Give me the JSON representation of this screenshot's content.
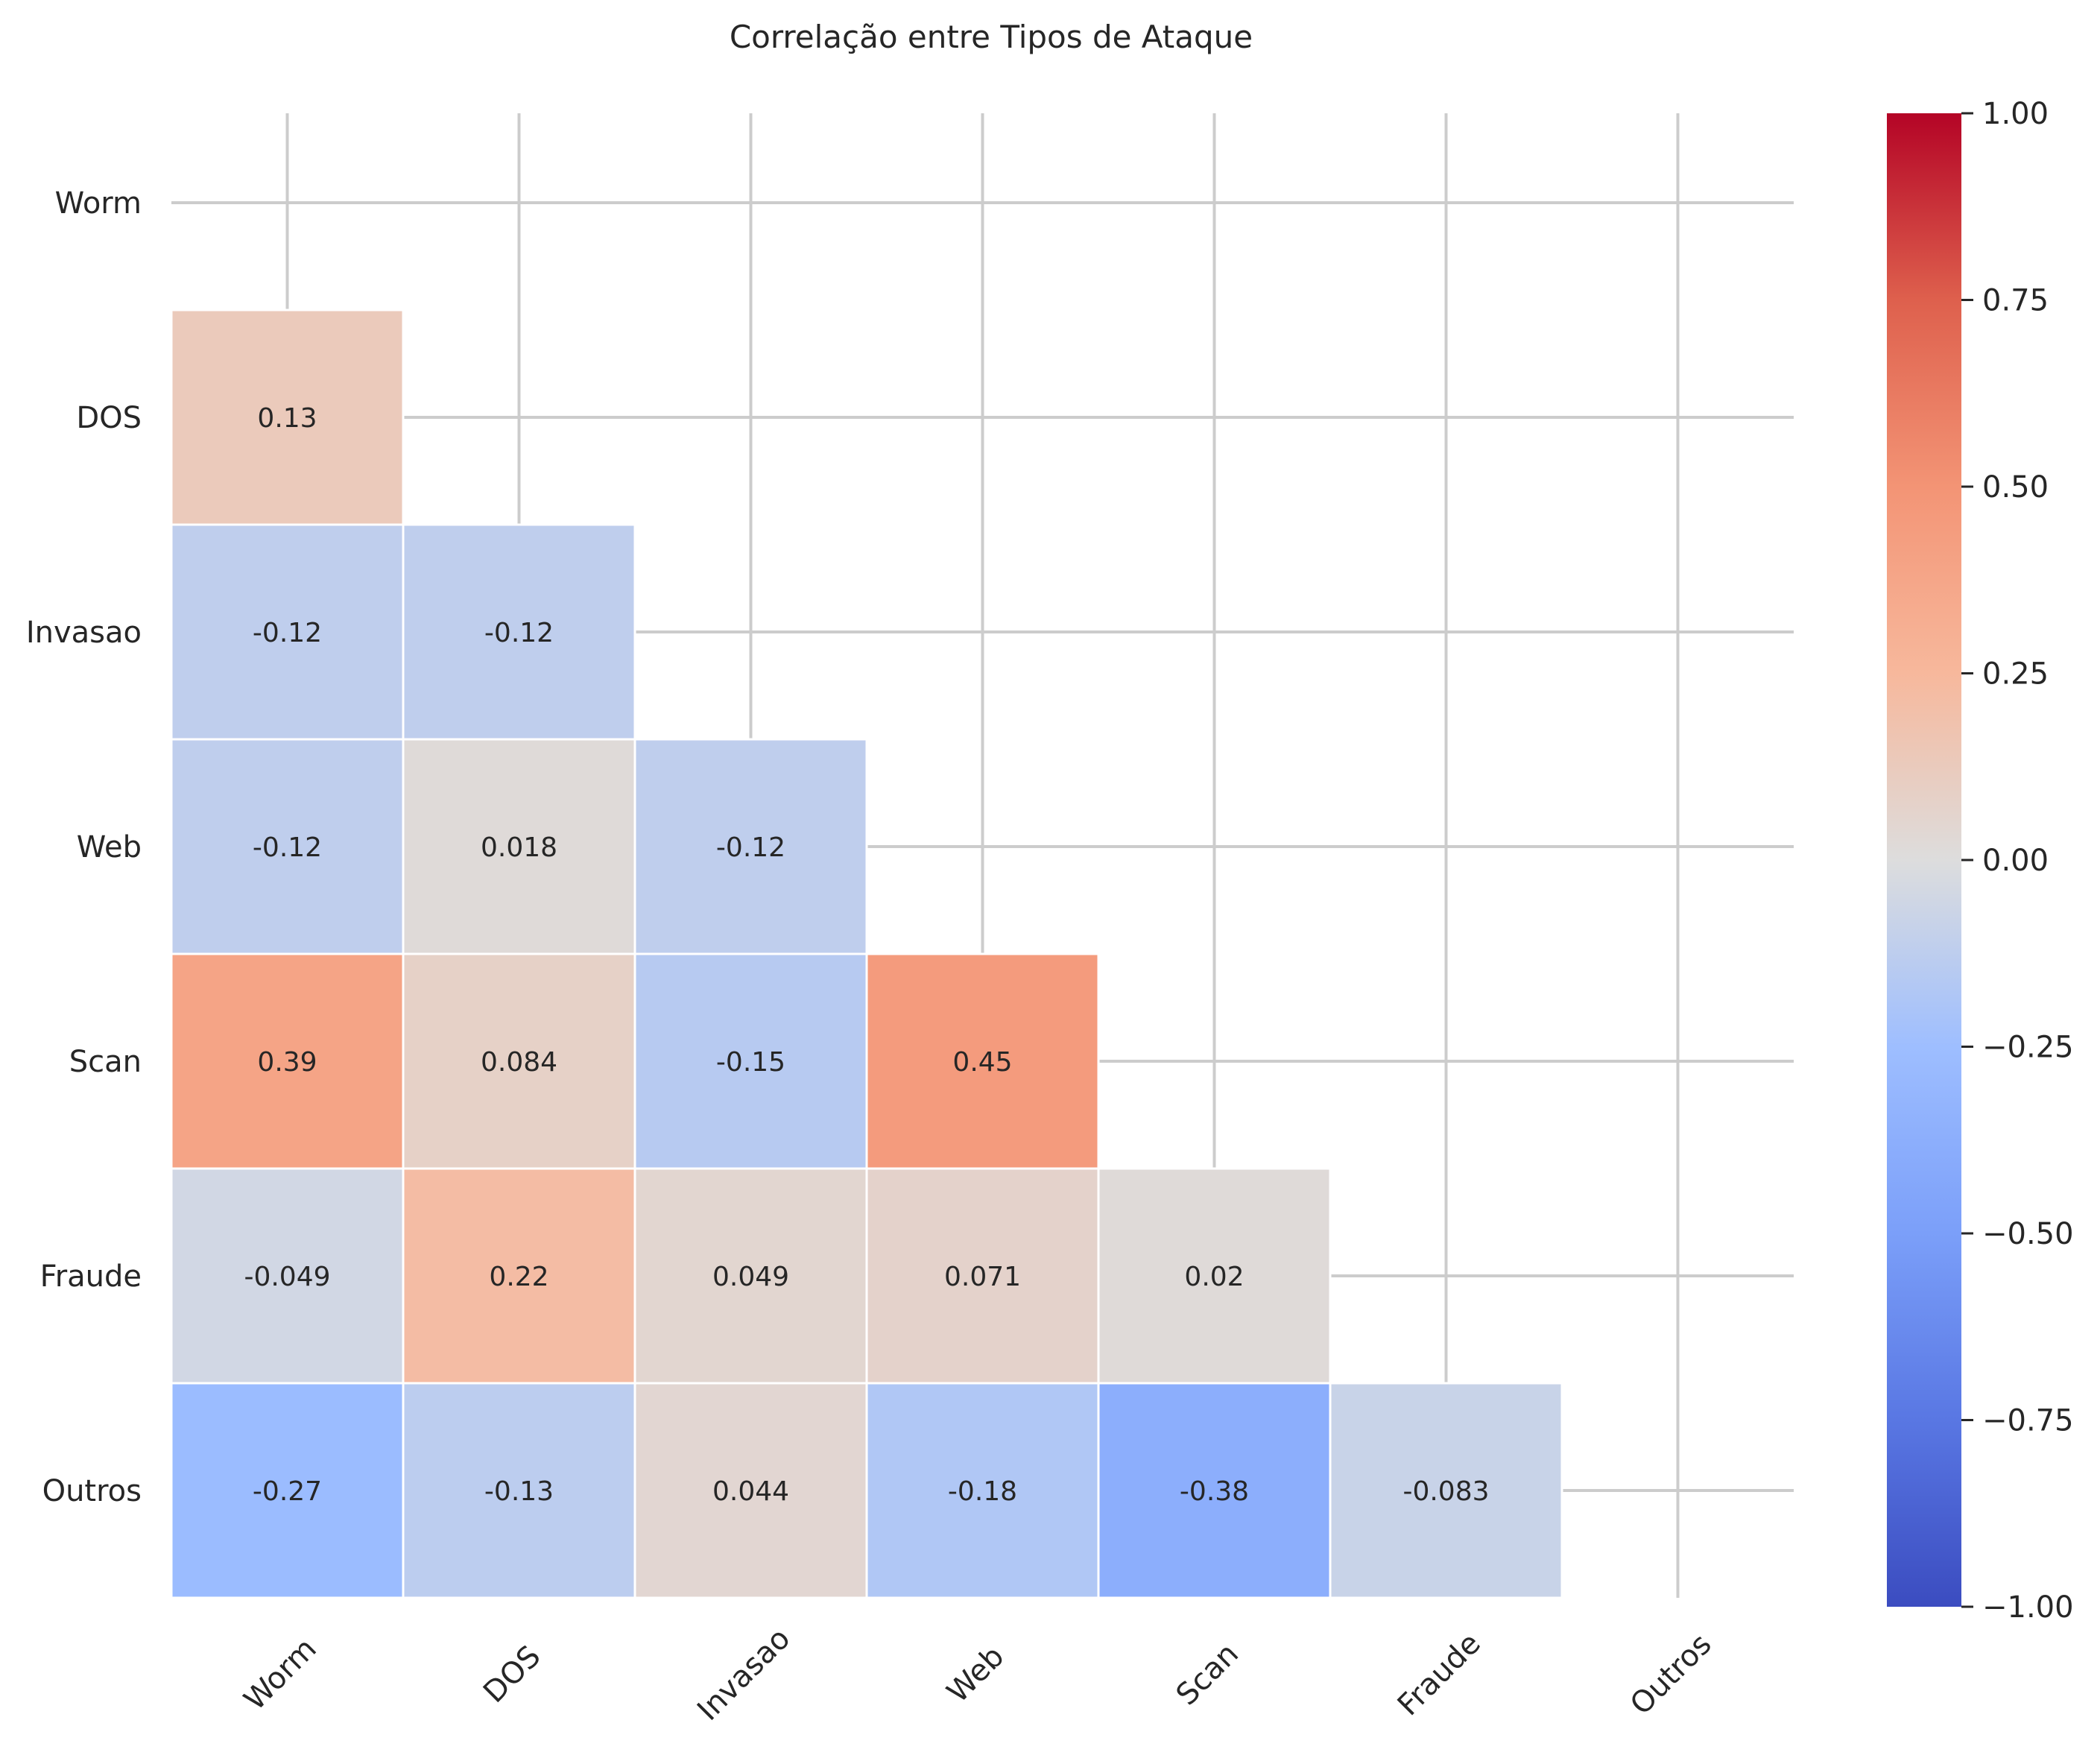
{
  "chart_data": {
    "type": "heatmap",
    "title": "Correlação entre Tipos de Ataque",
    "xlabel": "",
    "ylabel": "",
    "x_categories": [
      "Worm",
      "DOS",
      "Invasao",
      "Web",
      "Scan",
      "Fraude",
      "Outros"
    ],
    "y_categories": [
      "Worm",
      "DOS",
      "Invasao",
      "Web",
      "Scan",
      "Fraude",
      "Outros"
    ],
    "mask": "upper-triangle-including-diagonal",
    "values": [
      [
        null,
        null,
        null,
        null,
        null,
        null,
        null
      ],
      [
        0.13,
        null,
        null,
        null,
        null,
        null,
        null
      ],
      [
        -0.12,
        -0.12,
        null,
        null,
        null,
        null,
        null
      ],
      [
        -0.12,
        0.018,
        -0.12,
        null,
        null,
        null,
        null
      ],
      [
        0.39,
        0.084,
        -0.15,
        0.45,
        null,
        null,
        null
      ],
      [
        -0.049,
        0.22,
        0.049,
        0.071,
        0.02,
        null,
        null
      ],
      [
        -0.27,
        -0.13,
        0.044,
        -0.18,
        -0.38,
        -0.083,
        null
      ]
    ],
    "annotations": [
      [
        null,
        null,
        null,
        null,
        null,
        null,
        null
      ],
      [
        "0.13",
        null,
        null,
        null,
        null,
        null,
        null
      ],
      [
        "-0.12",
        "-0.12",
        null,
        null,
        null,
        null,
        null
      ],
      [
        "-0.12",
        "0.018",
        "-0.12",
        null,
        null,
        null,
        null
      ],
      [
        "0.39",
        "0.084",
        "-0.15",
        "0.45",
        null,
        null,
        null
      ],
      [
        "-0.049",
        "0.22",
        "0.049",
        "0.071",
        "0.02",
        null,
        null
      ],
      [
        "-0.27",
        "-0.13",
        "0.044",
        "-0.18",
        "-0.38",
        "-0.083",
        null
      ]
    ],
    "colormap": "coolwarm",
    "vmin": -1,
    "vmax": 1,
    "colorbar": {
      "ticks": [
        1,
        0.75,
        0.5,
        0.25,
        0,
        -0.25,
        -0.5,
        -0.75,
        -1
      ],
      "tick_labels": [
        "1.00",
        "0.75",
        "0.50",
        "0.25",
        "0.00",
        "−0.25",
        "−0.50",
        "−0.75",
        "−1.00"
      ],
      "placement": "right"
    },
    "grid": true,
    "x_tick_rotation": 45
  },
  "colors": {
    "grid": "#cccccc",
    "text": "#262626",
    "cell_border": "#ffffff",
    "cmap_low": "#3b4cc0",
    "cmap_mid": "#dddddd",
    "cmap_high": "#b40426"
  }
}
